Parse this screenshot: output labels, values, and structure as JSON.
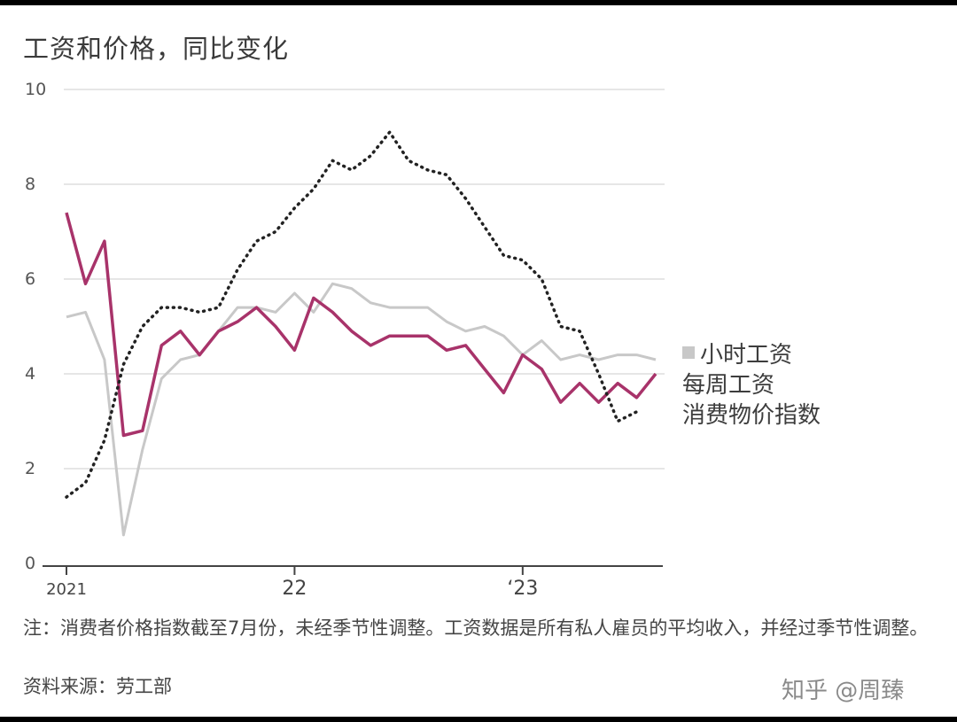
{
  "title": "工资和价格，同比变化",
  "colors": {
    "hourly": "#c8c8c8",
    "weekly": "#a8336a",
    "cpi": "#222222",
    "grid": "#e6e6e6",
    "axis": "#444444"
  },
  "chart_data": {
    "type": "line",
    "title": "工资和价格，同比变化",
    "xlabel": "",
    "ylabel": "",
    "ylim": [
      0,
      10
    ],
    "yticks": [
      "0",
      "2",
      "4",
      "6",
      "8",
      "10"
    ],
    "xticks": [
      {
        "label": "2021",
        "month": 0
      },
      {
        "label": "22",
        "month": 12
      },
      {
        "label": "‘23",
        "month": 24
      }
    ],
    "x_range_months": [
      0,
      31
    ],
    "grid": true,
    "legend_placement": "right",
    "series": [
      {
        "name": "小时工资",
        "style": "solid-light",
        "x": [
          0,
          1,
          2,
          3,
          4,
          5,
          6,
          7,
          8,
          9,
          10,
          11,
          12,
          13,
          14,
          15,
          16,
          17,
          18,
          19,
          20,
          21,
          22,
          23,
          24,
          25,
          26,
          27,
          28,
          29,
          30,
          31
        ],
        "values": [
          5.2,
          5.3,
          4.3,
          0.6,
          2.4,
          3.9,
          4.3,
          4.4,
          4.9,
          5.4,
          5.4,
          5.3,
          5.7,
          5.3,
          5.9,
          5.8,
          5.5,
          5.4,
          5.4,
          5.4,
          5.1,
          4.9,
          5.0,
          4.8,
          4.4,
          4.7,
          4.3,
          4.4,
          4.3,
          4.4,
          4.4,
          4.3
        ]
      },
      {
        "name": "每周工资",
        "style": "solid",
        "x": [
          0,
          1,
          2,
          3,
          4,
          5,
          6,
          7,
          8,
          9,
          10,
          11,
          12,
          13,
          14,
          15,
          16,
          17,
          18,
          19,
          20,
          21,
          22,
          23,
          24,
          25,
          26,
          27,
          28,
          29,
          30,
          31
        ],
        "values": [
          7.4,
          5.9,
          6.8,
          2.7,
          2.8,
          4.6,
          4.9,
          4.4,
          4.9,
          5.1,
          5.4,
          5.0,
          4.5,
          5.6,
          5.3,
          4.9,
          4.6,
          4.8,
          4.8,
          4.8,
          4.5,
          4.6,
          4.1,
          3.6,
          4.4,
          4.1,
          3.4,
          3.8,
          3.4,
          3.8,
          3.5,
          4.0
        ]
      },
      {
        "name": "消费物价指数",
        "style": "dotted",
        "x": [
          0,
          1,
          2,
          3,
          4,
          5,
          6,
          7,
          8,
          9,
          10,
          11,
          12,
          13,
          14,
          15,
          16,
          17,
          18,
          19,
          20,
          21,
          22,
          23,
          24,
          25,
          26,
          27,
          28,
          29,
          30
        ],
        "values": [
          1.4,
          1.7,
          2.6,
          4.2,
          5.0,
          5.4,
          5.4,
          5.3,
          5.4,
          6.2,
          6.8,
          7.0,
          7.5,
          7.9,
          8.5,
          8.3,
          8.6,
          9.1,
          8.5,
          8.3,
          8.2,
          7.7,
          7.1,
          6.5,
          6.4,
          6.0,
          5.0,
          4.9,
          4.0,
          3.0,
          3.2
        ]
      }
    ]
  },
  "legend": {
    "hourly_label": "小时工资",
    "weekly_label": "每周工资",
    "cpi_label": "消费物价指数"
  },
  "note": "注：消费者价格指数截至7月份，未经季节性调整。工资数据是所有私人雇员的平均收入，并经过季节性调整。",
  "source": "资料来源：劳工部",
  "watermark": "知乎 @周臻"
}
